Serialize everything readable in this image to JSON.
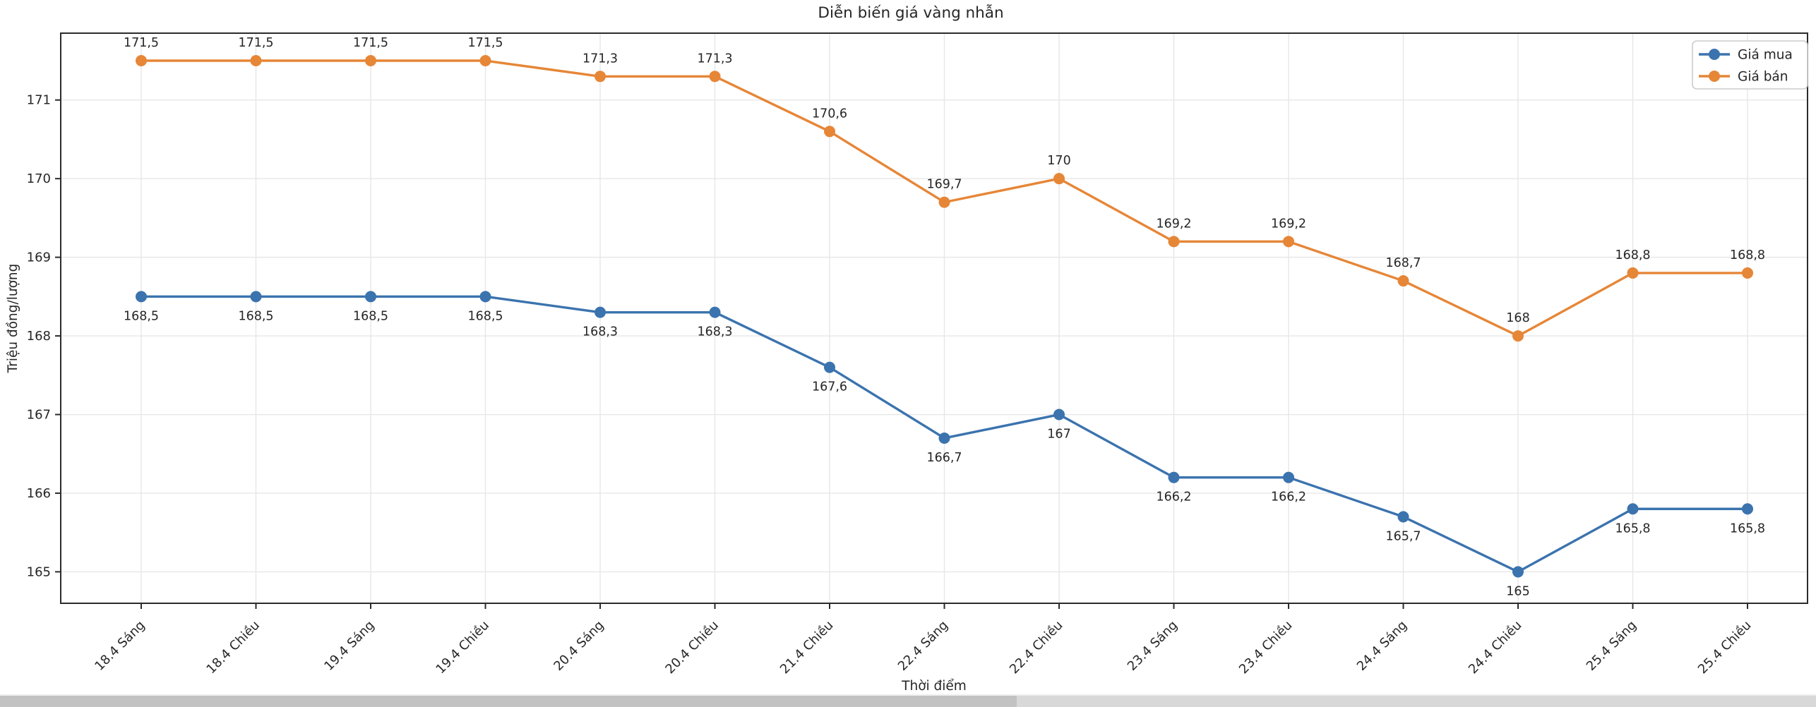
{
  "window": {
    "background": "#ffffff"
  },
  "chart_data": {
    "type": "line",
    "title": "Diễn biến giá vàng nhẫn",
    "xlabel": "Thời điểm",
    "ylabel": "Triệu đồng/lượng",
    "categories": [
      "18.4 Sáng",
      "18.4 Chiều",
      "19.4 Sáng",
      "19.4 Chiều",
      "20.4 Sáng",
      "20.4 Chiều",
      "21.4 Chiều",
      "22.4 Sáng",
      "22.4 Chiều",
      "23.4 Sáng",
      "23.4 Chiều",
      "24.4 Sáng",
      "24.4 Chiều",
      "25.4 Sáng",
      "25.4 Chiều"
    ],
    "series": [
      {
        "name": "Giá mua",
        "color": "#3b73ae",
        "values": [
          168.5,
          168.5,
          168.5,
          168.5,
          168.3,
          168.3,
          167.6,
          166.7,
          167,
          166.2,
          166.2,
          165.7,
          165,
          165.8,
          165.8
        ],
        "labels": [
          "168,5",
          "168,5",
          "168,5",
          "168,5",
          "168,3",
          "168,3",
          "167,6",
          "166,7",
          "167",
          "166,2",
          "166,2",
          "165,7",
          "165",
          "165,8",
          "165,8"
        ],
        "label_side": "below"
      },
      {
        "name": "Giá bán",
        "color": "#e68637",
        "values": [
          171.5,
          171.5,
          171.5,
          171.5,
          171.3,
          171.3,
          170.6,
          169.7,
          170,
          169.2,
          169.2,
          168.7,
          168,
          168.8,
          168.8
        ],
        "labels": [
          "171,5",
          "171,5",
          "171,5",
          "171,5",
          "171,3",
          "171,3",
          "170,6",
          "169,7",
          "170",
          "169,2",
          "169,2",
          "168,7",
          "168",
          "168,8",
          "168,8"
        ],
        "label_side": "above"
      }
    ],
    "yticks": [
      165,
      166,
      167,
      168,
      169,
      170,
      171
    ],
    "ytick_labels": [
      "165",
      "166",
      "167",
      "168",
      "169",
      "170",
      "171"
    ],
    "ylim": [
      164.6,
      171.85
    ],
    "grid": true,
    "grid_color": "#e7e7e7",
    "spine_color": "#2b2b2b",
    "legend_position": "top-right",
    "legend_entries": [
      "Giá mua",
      "Giá bán"
    ]
  }
}
